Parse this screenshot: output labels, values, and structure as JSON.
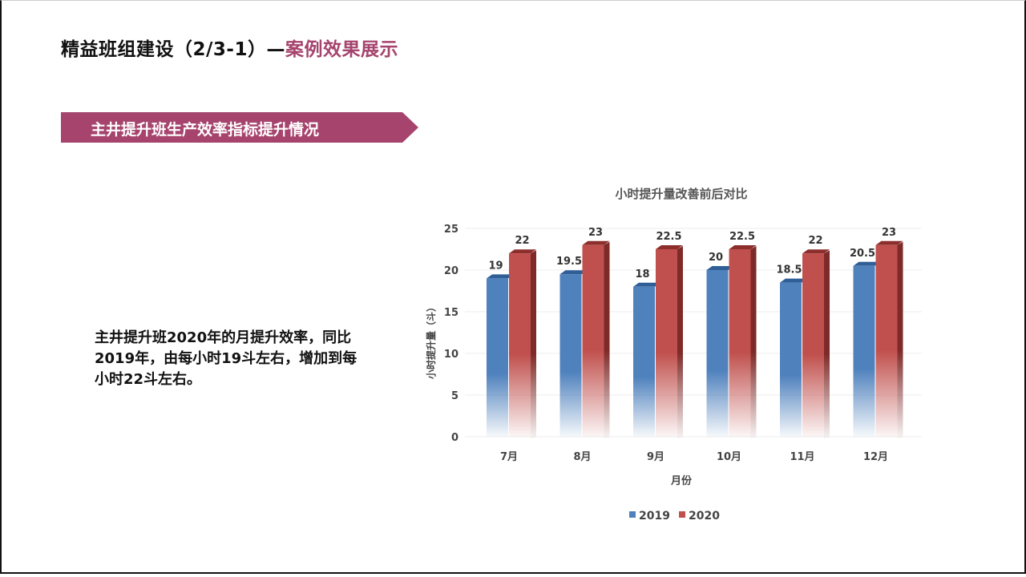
{
  "slide": {
    "title_main": "精益班组建设（2/3-1）—",
    "title_accent": "案例效果展示",
    "banner": "主井提升班生产效率指标提升情况",
    "description": "主井提升班2020年的月提升效率，同比2019年，由每小时19斗左右，增加到每小时22斗左右。",
    "colors": {
      "accent": "#a6446e",
      "series_2019": "#4f81bd",
      "series_2020": "#c0504d"
    }
  },
  "chart_data": {
    "type": "bar",
    "title": "小时提升量改善前后对比",
    "xlabel": "月份",
    "ylabel": "小时提升量（斗）",
    "categories": [
      "7月",
      "8月",
      "9月",
      "10月",
      "11月",
      "12月"
    ],
    "series": [
      {
        "name": "2019",
        "values": [
          19,
          19.5,
          18,
          20,
          18.5,
          20.5
        ]
      },
      {
        "name": "2020",
        "values": [
          22,
          23,
          22.5,
          22.5,
          22,
          23
        ]
      }
    ],
    "ylim": [
      0,
      25
    ],
    "yticks": [
      0,
      5,
      10,
      15,
      20,
      25
    ],
    "grid": true,
    "legend": "bottom"
  }
}
